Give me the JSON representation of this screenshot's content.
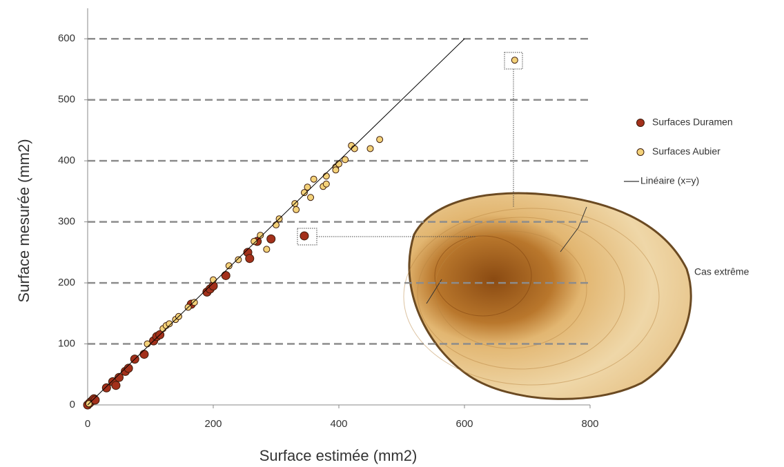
{
  "chart_data": {
    "type": "scatter",
    "x_label": "Surface estimée (mm2)",
    "y_label": "Surface mesurée (mm2)",
    "xlim": [
      0,
      800
    ],
    "ylim": [
      0,
      650
    ],
    "xticks": [
      0,
      200,
      400,
      600,
      800
    ],
    "yticks": [
      0,
      100,
      200,
      300,
      400,
      500,
      600
    ],
    "grid": true,
    "series": [
      {
        "name": "Surfaces Duramen",
        "color": "#a3301b",
        "x": [
          0,
          3,
          5,
          8,
          10,
          12,
          30,
          40,
          45,
          50,
          60,
          65,
          75,
          90,
          105,
          110,
          115,
          165,
          190,
          195,
          200,
          220,
          255,
          258,
          270,
          292,
          345
        ],
        "values": [
          0,
          3,
          5,
          8,
          10,
          8,
          28,
          38,
          32,
          45,
          55,
          60,
          75,
          83,
          105,
          112,
          115,
          165,
          185,
          190,
          195,
          212,
          250,
          240,
          268,
          272,
          277
        ]
      },
      {
        "name": "Surfaces Aubier",
        "color": "#f4d27a",
        "x": [
          2,
          95,
          120,
          125,
          130,
          140,
          145,
          160,
          170,
          200,
          225,
          240,
          265,
          275,
          285,
          300,
          305,
          330,
          332,
          345,
          350,
          355,
          360,
          375,
          380,
          380,
          395,
          395,
          400,
          410,
          420,
          425,
          450,
          465,
          680
        ],
        "values": [
          2,
          100,
          125,
          130,
          133,
          140,
          145,
          160,
          168,
          205,
          228,
          238,
          268,
          278,
          255,
          295,
          305,
          330,
          320,
          348,
          357,
          340,
          370,
          358,
          375,
          362,
          390,
          385,
          395,
          402,
          425,
          420,
          420,
          435,
          565
        ]
      },
      {
        "name": "Linéaire (x=y)",
        "color": "#000000",
        "x": [
          0,
          600
        ],
        "values": [
          0,
          600
        ]
      }
    ],
    "annotation": "Cas extrême"
  }
}
